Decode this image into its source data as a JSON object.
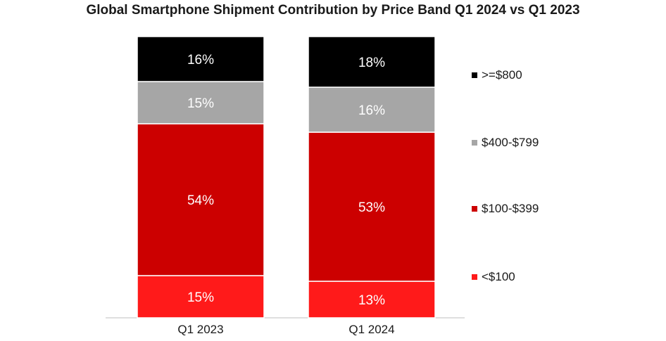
{
  "chart_data": {
    "type": "bar",
    "stacked": true,
    "title": "Global Smartphone Shipment Contribution by Price Band Q1 2024 vs Q1 2023",
    "categories": [
      "Q1 2023",
      "Q1 2024"
    ],
    "unit": "%",
    "ylim": [
      0,
      100
    ],
    "grid": false,
    "legend_position": "right",
    "series": [
      {
        "name": "<$100",
        "color": "#ff1a1a",
        "values": [
          15,
          13
        ]
      },
      {
        "name": "$100-$399",
        "color": "#cc0000",
        "values": [
          54,
          53
        ]
      },
      {
        "name": "$400-$799",
        "color": "#a6a6a6",
        "values": [
          15,
          16
        ]
      },
      {
        "name": ">=$800",
        "color": "#000000",
        "values": [
          16,
          18
        ]
      }
    ]
  }
}
